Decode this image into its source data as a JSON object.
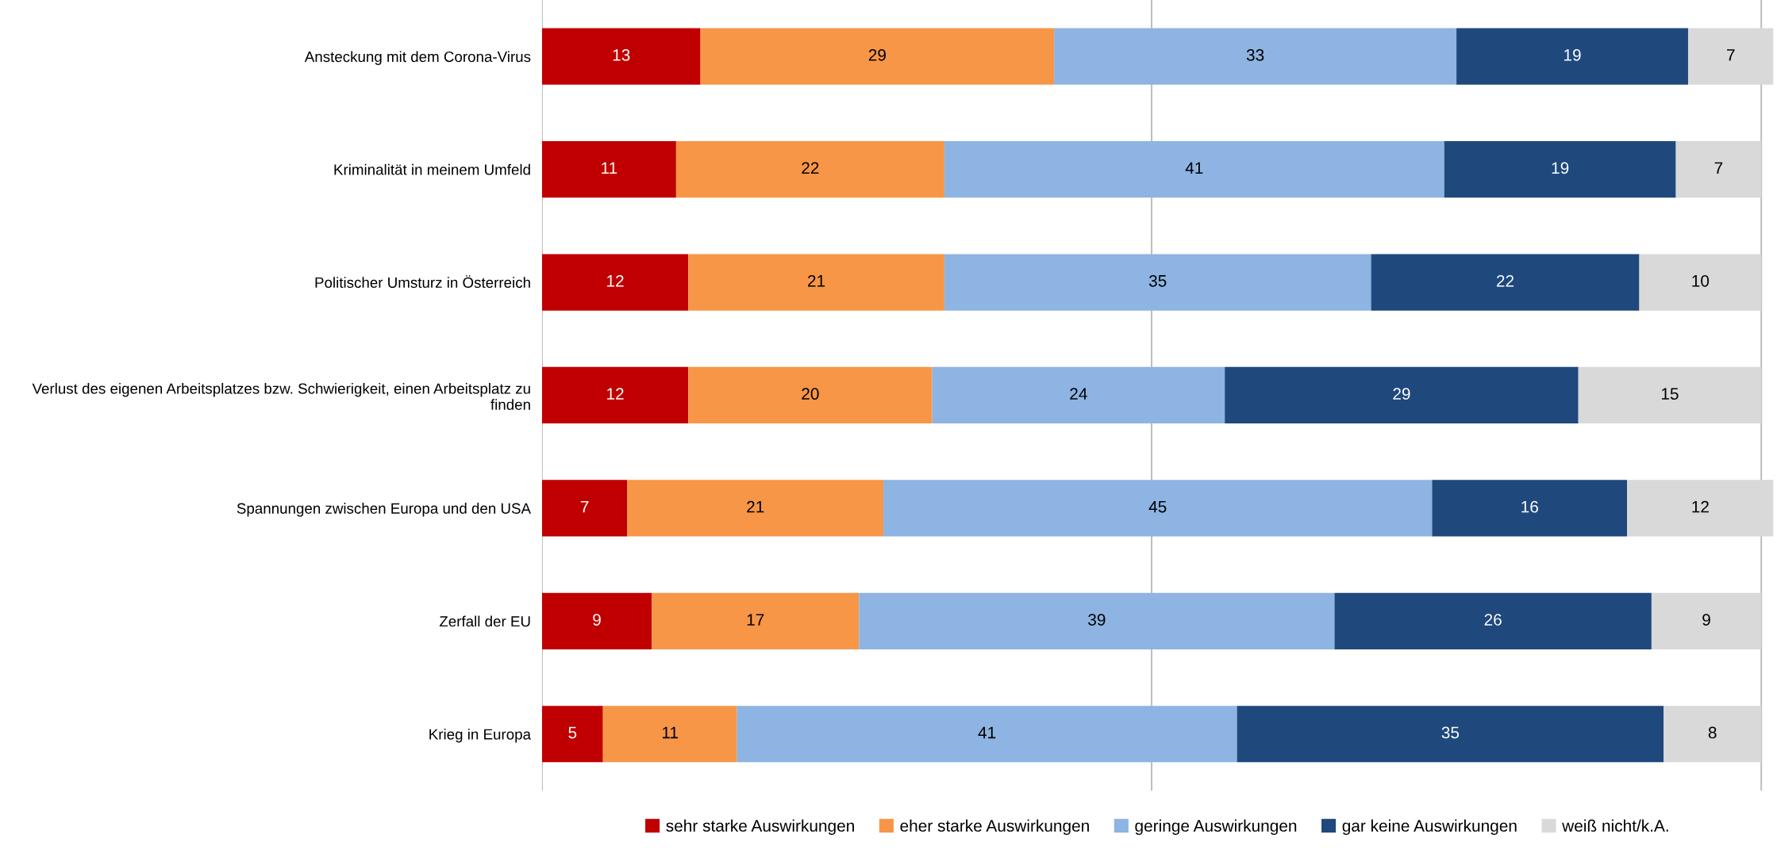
{
  "chart_data": {
    "type": "bar",
    "orientation": "horizontal",
    "stacked": true,
    "data_labels": true,
    "categories": [
      "Ansteckung mit dem Corona-Virus",
      "Kriminalität in meinem Umfeld",
      "Politischer Umsturz in Österreich",
      "Verlust des eigenen Arbeitsplatzes bzw. Schwierigkeit, einen Arbeitsplatz zu\nfinden",
      "Spannungen zwischen Europa und den USA",
      "Zerfall der EU",
      "Krieg in Europa"
    ],
    "series": [
      {
        "name": "sehr starke Auswirkungen",
        "color": "#c00000",
        "values": [
          13,
          11,
          12,
          12,
          7,
          9,
          5
        ]
      },
      {
        "name": "eher starke Auswirkungen",
        "color": "#f79646",
        "values": [
          29,
          22,
          21,
          20,
          21,
          17,
          11
        ]
      },
      {
        "name": "geringe Auswirkungen",
        "color": "#8db4e2",
        "values": [
          33,
          41,
          35,
          24,
          45,
          39,
          41
        ]
      },
      {
        "name": "gar keine Auswirkungen",
        "color": "#1f497d",
        "values": [
          19,
          19,
          22,
          29,
          16,
          26,
          35
        ]
      },
      {
        "name": "weiß nicht/k.A.",
        "color": "#d9d9d9",
        "values": [
          7,
          7,
          10,
          15,
          12,
          9,
          8
        ]
      }
    ],
    "xlim": [
      0,
      101
    ],
    "ref_lines": [
      {
        "axis": "x",
        "value": 0,
        "color": "#bfbfbf"
      },
      {
        "axis": "x",
        "value": 50,
        "color": "#bfbfbf"
      },
      {
        "axis": "x",
        "value": 100,
        "color": "#bfbfbf"
      }
    ],
    "tick_labels": "y",
    "legend": "bottom"
  }
}
